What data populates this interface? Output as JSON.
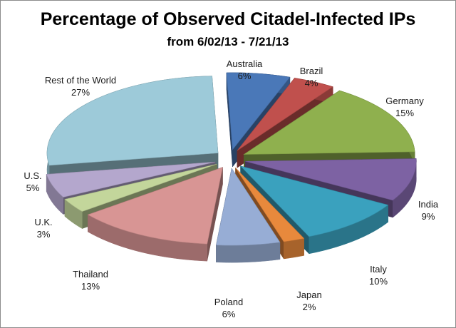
{
  "chart_data": {
    "type": "pie",
    "title": "Percentage of Observed Citadel-Infected IPs",
    "subtitle": "from 6/02/13 - 7/21/13",
    "slices": [
      {
        "label": "Australia",
        "value_label": "6%",
        "value": 6,
        "color": "#4a78b8"
      },
      {
        "label": "Brazil",
        "value_label": "4%",
        "value": 4,
        "color": "#c0504d"
      },
      {
        "label": "Germany",
        "value_label": "15%",
        "value": 15,
        "color": "#8fb04e"
      },
      {
        "label": "India",
        "value_label": "9%",
        "value": 9,
        "color": "#7d62a3"
      },
      {
        "label": "Italy",
        "value_label": "10%",
        "value": 10,
        "color": "#3aa1be"
      },
      {
        "label": "Japan",
        "value_label": "2%",
        "value": 2,
        "color": "#e8893c"
      },
      {
        "label": "Poland",
        "value_label": "6%",
        "value": 6,
        "color": "#97add5"
      },
      {
        "label": "Thailand",
        "value_label": "13%",
        "value": 13,
        "color": "#d89594"
      },
      {
        "label": "U.K.",
        "value_label": "3%",
        "value": 3,
        "color": "#c3d69b"
      },
      {
        "label": "U.S.",
        "value_label": "5%",
        "value": 5,
        "color": "#b4a7cd"
      },
      {
        "label": "Rest of the World",
        "value_label": "27%",
        "value": 27,
        "color": "#9dcad9"
      }
    ],
    "exploded": true,
    "style": "3d",
    "legend": "none"
  }
}
